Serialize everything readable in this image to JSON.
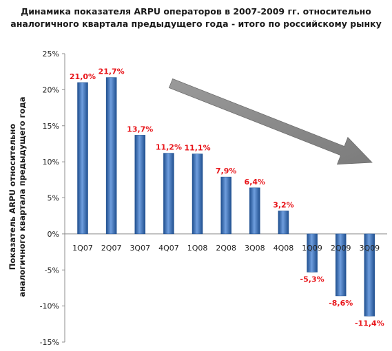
{
  "chart_data": {
    "type": "bar",
    "title_line1": "Динамика показателя ARPU операторов в 2007-2009 гг. относительно",
    "title_line2": "аналогичного квартала предыдущего года - итого по российскому рынку",
    "ylabel_line1": "Показатель ARPU относительно",
    "ylabel_line2": "аналогичного квартала предыдущего года",
    "xlabel": "",
    "categories": [
      "1Q07",
      "2Q07",
      "3Q07",
      "4Q07",
      "1Q08",
      "2Q08",
      "3Q08",
      "4Q08",
      "1Q09",
      "2Q09",
      "3Q09"
    ],
    "values": [
      21.0,
      21.7,
      13.7,
      11.2,
      11.1,
      7.9,
      6.4,
      3.2,
      -5.3,
      -8.6,
      -11.4
    ],
    "data_labels": [
      "21,0%",
      "21,7%",
      "13,7%",
      "11,2%",
      "11,1%",
      "7,9%",
      "6,4%",
      "3,2%",
      "-5,3%",
      "-8,6%",
      "-11,4%"
    ],
    "yticks": [
      25,
      20,
      15,
      10,
      5,
      0,
      -5,
      -10,
      -15
    ],
    "ytick_labels": [
      "25%",
      "20%",
      "15%",
      "10%",
      "5%",
      "0%",
      "-5%",
      "-10%",
      "-15%"
    ],
    "ylim": [
      -15,
      25
    ],
    "grid": false,
    "legend": "none",
    "trend_arrow": true,
    "colors": {
      "bar": "#3a72c0",
      "bar_dark": "#1f4f8f",
      "bar_light": "#6f9ede",
      "label": "#e8161b",
      "arrow": "#8a8a8a"
    }
  }
}
